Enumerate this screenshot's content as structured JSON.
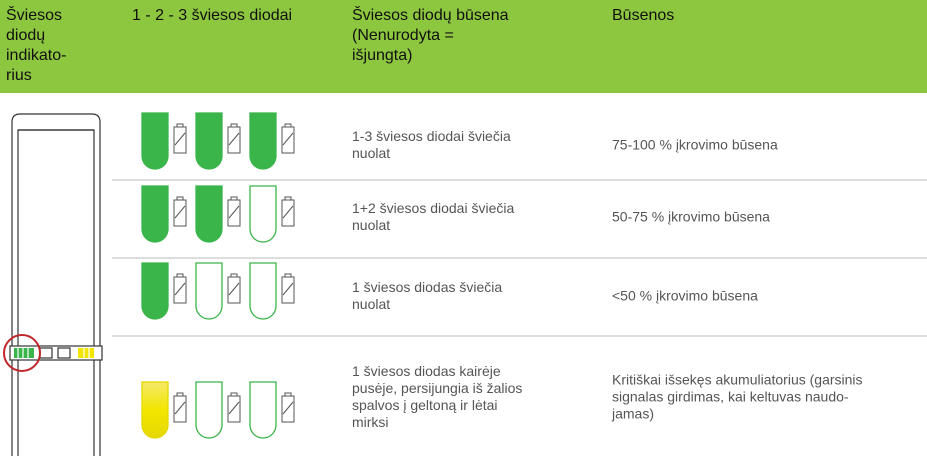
{
  "header": {
    "cells": [
      [
        "Šviesos",
        "diodų",
        "indikato-",
        "rius"
      ],
      [
        "1 - 2 - 3 šviesos diodai"
      ],
      [
        "Šviesos diodų būsena",
        "(Nenurodyta =",
        "išjungta)"
      ],
      [
        "Būsenos"
      ]
    ]
  },
  "table": {
    "rows": [
      {
        "led_state": [
          "1-3 šviesos diodai šviečia",
          "nuolat"
        ],
        "status": [
          "75-100 % įkrovimo būsena"
        ]
      },
      {
        "led_state": [
          "1+2 šviesos diodai šviečia",
          "nuolat"
        ],
        "status": [
          "50-75 % įkrovimo būsena"
        ]
      },
      {
        "led_state": [
          "1 šviesos diodas šviečia",
          "nuolat"
        ],
        "status": [
          "<50 % įkrovimo būsena"
        ]
      },
      {
        "led_state": [
          "1 šviesos diodas kairėje",
          "pusėje, persijungia iš žalios",
          "spalvos į geltoną ir lėtai",
          "mirksi"
        ],
        "status": [
          "Kritiškai išsekęs akumuliatorius (garsinis",
          "signalas girdimas, kai keltuvas naudo-",
          "jamas)"
        ]
      }
    ]
  }
}
